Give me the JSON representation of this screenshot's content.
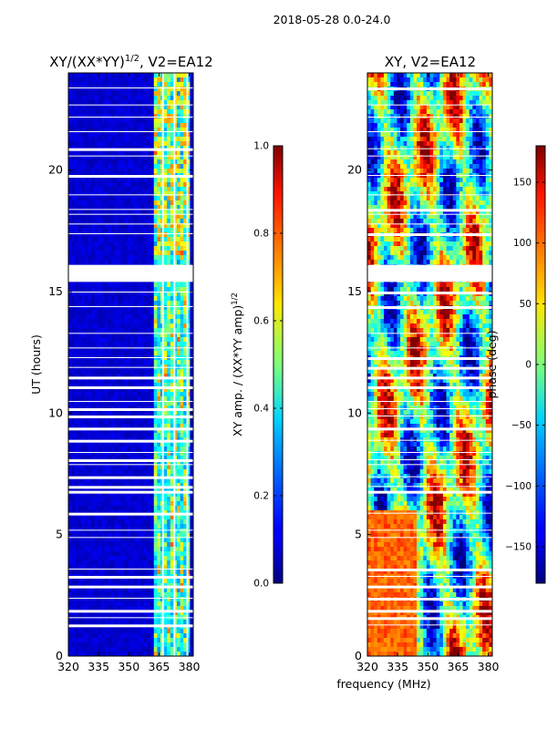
{
  "suptitle": "2018-05-28 0.0-24.0",
  "chart_data": [
    {
      "type": "heatmap",
      "title_main": "XY/(XX*YY)",
      "title_exp": "1/2",
      "title_tail": ", V2=EA12",
      "xlabel": "",
      "ylabel": "UT (hours)",
      "xlim": [
        320,
        382
      ],
      "ylim": [
        0,
        24
      ],
      "xticks": [
        320,
        335,
        350,
        365,
        380
      ],
      "yticks": [
        0,
        5,
        10,
        15,
        20
      ],
      "colormap": "jet",
      "value_range": [
        0.0,
        1.0
      ],
      "colorbar": {
        "label_main": "XY amp. / (XX*YY amp)",
        "label_exp": "1/2",
        "ticks": [
          "0.0",
          "0.2",
          "0.4",
          "0.6",
          "0.8",
          "1.0"
        ],
        "tick_values": [
          0.0,
          0.2,
          0.4,
          0.6,
          0.8,
          1.0
        ],
        "range": [
          0.0,
          1.0
        ]
      },
      "gap_hours": [
        16.1,
        15.4
      ],
      "high_band_mhz": [
        362,
        381
      ]
    },
    {
      "type": "heatmap",
      "title_main": "XY, V2=EA12",
      "xlabel": "frequency (MHz)",
      "ylabel": "",
      "xlim": [
        320,
        382
      ],
      "ylim": [
        0,
        24
      ],
      "xticks": [
        320,
        335,
        350,
        365,
        380
      ],
      "yticks": [
        0,
        5,
        10,
        15,
        20
      ],
      "colormap": "jet",
      "value_range": [
        -180,
        180
      ],
      "colorbar": {
        "label_main": "phase (deg)",
        "ticks": [
          "150",
          "100",
          "50",
          "0",
          "−50",
          "−100",
          "−150"
        ],
        "tick_values": [
          150,
          100,
          50,
          0,
          -50,
          -100,
          -150
        ],
        "range": [
          -180,
          180
        ]
      },
      "gap_hours": [
        16.1,
        15.4
      ]
    }
  ]
}
